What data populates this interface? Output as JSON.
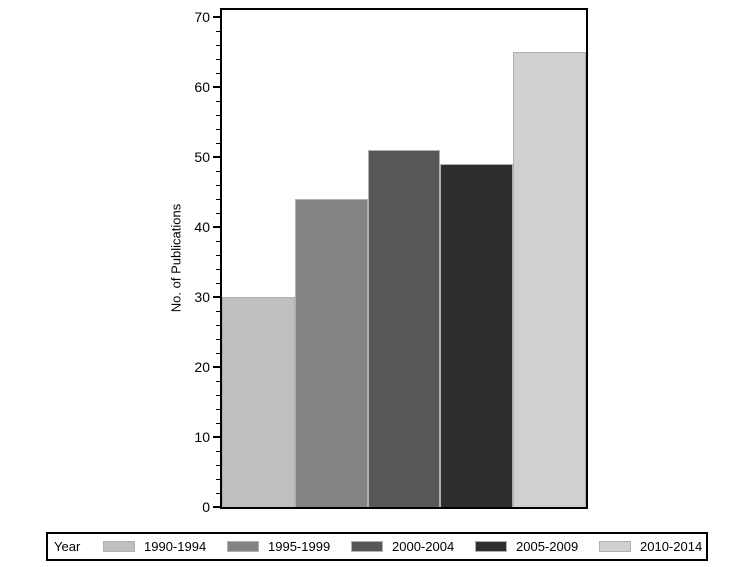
{
  "chart_data": {
    "type": "bar",
    "categories": [
      "1990-1994",
      "1995-1999",
      "2000-2004",
      "2005-2009",
      "2010-2014"
    ],
    "values": [
      30,
      44,
      51,
      49,
      65
    ],
    "bar_colors": [
      "#bfbfbf",
      "#848484",
      "#575757",
      "#2e2e2e",
      "#d0d0d0"
    ],
    "bar_outline_color": "#b0b0b0",
    "title": "",
    "xlabel": "",
    "ylabel": "No. of Publications",
    "ylim": [
      0,
      70
    ],
    "y_major_step": 10,
    "y_minor_step": 2,
    "y_tick_labels": [
      "0",
      "10",
      "20",
      "30",
      "40",
      "50",
      "60",
      "70"
    ],
    "grid": false,
    "legend_title": "Year",
    "legend_position": "bottom",
    "frame_color": "#000000",
    "background_color": "#ffffff"
  }
}
